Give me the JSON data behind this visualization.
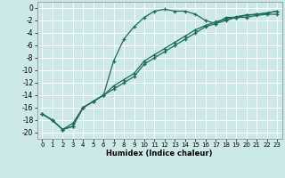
{
  "bg_color": "#cde8e8",
  "grid_color": "#ffffff",
  "line_color": "#1a6b5e",
  "marker": "+",
  "xlabel": "Humidex (Indice chaleur)",
  "xlim": [
    -0.5,
    23.5
  ],
  "ylim": [
    -21,
    1
  ],
  "xticks": [
    0,
    1,
    2,
    3,
    4,
    5,
    6,
    7,
    8,
    9,
    10,
    11,
    12,
    13,
    14,
    15,
    16,
    17,
    18,
    19,
    20,
    21,
    22,
    23
  ],
  "yticks": [
    0,
    -2,
    -4,
    -6,
    -8,
    -10,
    -12,
    -14,
    -16,
    -18,
    -20
  ],
  "curve1_x": [
    0,
    1,
    2,
    3,
    4,
    5,
    6,
    7,
    8,
    9,
    10,
    11,
    12,
    13,
    14,
    15,
    16,
    17,
    18,
    19,
    20,
    21,
    22,
    23
  ],
  "curve1_y": [
    -17,
    -18,
    -19.5,
    -19,
    -16,
    -15,
    -14,
    -8.5,
    -5,
    -3,
    -1.5,
    -0.5,
    -0.2,
    -0.5,
    -0.5,
    -1.0,
    -2.0,
    -2.5,
    -1.5,
    -1.5,
    -1.5,
    -1.2,
    -1.0,
    -1.0
  ],
  "curve2_x": [
    0,
    1,
    2,
    3,
    4,
    5,
    6,
    7,
    8,
    9,
    10,
    11,
    12,
    13,
    14,
    15,
    16,
    17,
    18,
    19,
    20,
    21,
    22,
    23
  ],
  "curve2_y": [
    -17,
    -18,
    -19.5,
    -19,
    -16,
    -15,
    -14,
    -13,
    -12,
    -11,
    -9,
    -8,
    -7,
    -6,
    -5,
    -4,
    -3,
    -2.5,
    -2.0,
    -1.5,
    -1.2,
    -1.0,
    -0.8,
    -0.5
  ],
  "curve3_x": [
    0,
    1,
    2,
    3,
    4,
    5,
    6,
    7,
    8,
    9,
    10,
    11,
    12,
    13,
    14,
    15,
    16,
    17,
    18,
    19,
    20,
    21,
    22,
    23
  ],
  "curve3_y": [
    -17,
    -18,
    -19.5,
    -18.5,
    -16,
    -15,
    -14,
    -12.5,
    -11.5,
    -10.5,
    -8.5,
    -7.5,
    -6.5,
    -5.5,
    -4.5,
    -3.5,
    -2.8,
    -2.2,
    -1.8,
    -1.4,
    -1.1,
    -1.0,
    -0.8,
    -0.5
  ]
}
